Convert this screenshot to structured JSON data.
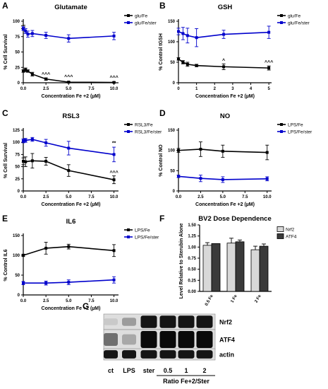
{
  "figure": {
    "blot": {
      "letter": "G",
      "rows": [
        "Nrf2",
        "ATF4",
        "actin"
      ],
      "lanes": [
        "ct",
        "LPS",
        "ster",
        "0.5",
        "1",
        "2"
      ],
      "xlabel": "Ratio Fe+2/Ster",
      "band_intensity": {
        "Nrf2": [
          0.15,
          0.35,
          0.95,
          0.95,
          0.95,
          0.95
        ],
        "ATF4": [
          0.55,
          0.3,
          1.0,
          1.0,
          1.0,
          1.0
        ],
        "actin": [
          0.95,
          0.95,
          0.95,
          0.95,
          0.95,
          0.95
        ]
      }
    }
  },
  "chart_data": [
    {
      "id": "A",
      "letter": "A",
      "type": "line",
      "title": "Glutamate",
      "xlabel": "Concentration Fe +2 (µM)",
      "ylabel": "% Cell Survival",
      "xlim": [
        0,
        10.5
      ],
      "ylim": [
        0,
        100
      ],
      "yaxis_break": true,
      "xticks": [
        0,
        2.5,
        5,
        7.5,
        10
      ],
      "yticks": [
        0,
        25,
        50,
        75,
        100
      ],
      "xtick_labels": [
        "0.0",
        "2.5",
        "5.0",
        "7.5",
        "10.0"
      ],
      "legend_position": "top-right",
      "series": [
        {
          "name": "glu/Fe",
          "color": "#000000",
          "x": [
            0,
            0.25,
            0.5,
            1,
            2.5,
            5,
            10
          ],
          "y": [
            19,
            21,
            19,
            14,
            6,
            1,
            0.5
          ],
          "err": [
            2,
            3,
            2,
            3,
            2,
            1,
            1
          ]
        },
        {
          "name": "glu/Fe/ster",
          "color": "#0000cc",
          "x": [
            0,
            0.25,
            0.5,
            1,
            2.5,
            5,
            10
          ],
          "y": [
            88,
            84,
            79,
            80,
            77,
            72,
            76
          ],
          "err": [
            3,
            4,
            5,
            5,
            5,
            6,
            6
          ]
        }
      ],
      "annotations": [
        {
          "text": "^^^",
          "x": 2.5,
          "y": 11
        },
        {
          "text": "^^^",
          "x": 5,
          "y": 7
        },
        {
          "text": "^^^",
          "x": 10,
          "y": 6
        }
      ]
    },
    {
      "id": "B",
      "letter": "B",
      "type": "line",
      "title": "GSH",
      "xlabel": "Concentration Fe +2 (µM)",
      "ylabel": "% Control tGSH",
      "xlim": [
        0,
        5.15
      ],
      "ylim": [
        0,
        150
      ],
      "xticks": [
        0,
        1,
        2,
        3,
        4,
        5
      ],
      "yticks": [
        0,
        50,
        100,
        150
      ],
      "xtick_labels": [
        "0",
        "1",
        "2",
        "3",
        "4",
        "5"
      ],
      "legend_position": "top-right",
      "series": [
        {
          "name": "glu/Fe",
          "color": "#000000",
          "x": [
            0,
            0.25,
            0.5,
            1,
            2.5,
            5
          ],
          "y": [
            58,
            50,
            45,
            42,
            39,
            36
          ],
          "err": [
            3,
            4,
            5,
            3,
            7,
            5
          ]
        },
        {
          "name": "glu/Fe/ster",
          "color": "#0000cc",
          "x": [
            0,
            0.25,
            0.5,
            1,
            2.5,
            5
          ],
          "y": [
            125,
            120,
            115,
            110,
            118,
            123
          ],
          "err": [
            8,
            15,
            18,
            22,
            10,
            15
          ]
        }
      ],
      "annotations": [
        {
          "text": "^",
          "x": 2.5,
          "y": 50
        },
        {
          "text": "^^^",
          "x": 5,
          "y": 46
        }
      ]
    },
    {
      "id": "C",
      "letter": "C",
      "type": "line",
      "title": "RSL3",
      "xlabel": "Concentration Fe +2 (µM)",
      "ylabel": "% Cell Survival",
      "xlim": [
        0,
        10.5
      ],
      "ylim": [
        0,
        125
      ],
      "xticks": [
        0,
        2.5,
        5,
        7.5,
        10
      ],
      "yticks": [
        0,
        25,
        50,
        75,
        100,
        125
      ],
      "xtick_labels": [
        "0.0",
        "2.5",
        "5.0",
        "7.5",
        "10.0"
      ],
      "legend_position": "top-right",
      "series": [
        {
          "name": "RSL3/Fe",
          "color": "#000000",
          "x": [
            0,
            0.25,
            1,
            2.5,
            5,
            10
          ],
          "y": [
            61,
            60,
            62,
            61,
            42,
            23
          ],
          "err": [
            7,
            10,
            15,
            8,
            12,
            8
          ]
        },
        {
          "name": "RSL3/Fe/ster",
          "color": "#0000cc",
          "x": [
            0,
            0.25,
            1,
            2.5,
            5,
            10
          ],
          "y": [
            103,
            104,
            106,
            99,
            88,
            75
          ],
          "err": [
            4,
            4,
            4,
            7,
            14,
            15
          ]
        }
      ],
      "annotations": [
        {
          "text": "**",
          "x": 10,
          "y": 95
        },
        {
          "text": "^^^",
          "x": 10,
          "y": 34
        }
      ]
    },
    {
      "id": "D",
      "letter": "D",
      "type": "line",
      "title": "NO",
      "xlabel": "Concentration Fe +2 (µM)",
      "ylabel": "% Control NO",
      "xlim": [
        0,
        10.5
      ],
      "ylim": [
        0,
        150
      ],
      "xticks": [
        0,
        2.5,
        5,
        7.5,
        10
      ],
      "yticks": [
        0,
        50,
        100,
        150
      ],
      "xtick_labels": [
        "0.0",
        "2.5",
        "5.0",
        "7.5",
        "10.0"
      ],
      "legend_position": "top-right",
      "series": [
        {
          "name": "LPS/Fe",
          "color": "#000000",
          "x": [
            0,
            2.5,
            5,
            10
          ],
          "y": [
            100,
            103,
            98,
            95
          ],
          "err": [
            5,
            18,
            15,
            18
          ]
        },
        {
          "name": "LPS/Fe/ster",
          "color": "#0000cc",
          "x": [
            0,
            2.5,
            5,
            10
          ],
          "y": [
            36,
            31,
            28,
            30
          ],
          "err": [
            3,
            8,
            7,
            5
          ]
        }
      ],
      "annotations": []
    },
    {
      "id": "E",
      "letter": "E",
      "type": "line",
      "title": "IL6",
      "xlabel": "Concentration Fe +2 (µM)",
      "ylabel": "% Control IL6",
      "xlim": [
        0,
        10.5
      ],
      "ylim": [
        0,
        150
      ],
      "xticks": [
        0,
        2.5,
        5,
        7.5,
        10
      ],
      "yticks": [
        0,
        50,
        100,
        150
      ],
      "xtick_labels": [
        "0.0",
        "2.5",
        "5.0",
        "7.5",
        "10.0"
      ],
      "legend_position": "top-right",
      "series": [
        {
          "name": "LPS/Fe",
          "color": "#000000",
          "x": [
            0,
            2.5,
            5,
            10
          ],
          "y": [
            100,
            118,
            122,
            112
          ],
          "err": [
            3,
            15,
            6,
            15
          ]
        },
        {
          "name": "LPS/Fe/ster",
          "color": "#0000cc",
          "x": [
            0,
            2.5,
            5,
            10
          ],
          "y": [
            30,
            30,
            32,
            38
          ],
          "err": [
            4,
            5,
            6,
            8
          ]
        }
      ],
      "annotations": []
    },
    {
      "id": "F",
      "letter": "F",
      "type": "bar",
      "title": "BV2 Dose Dependence",
      "xlabel": "",
      "ylabel": "Level Relative to Sterubin Alone",
      "ylim": [
        0,
        1.5
      ],
      "yticks": [
        0,
        0.25,
        0.5,
        0.75,
        1.0,
        1.25,
        1.5
      ],
      "ytick_labels": [
        "0.00",
        "0.25",
        "0.50",
        "0.75",
        "1.00",
        "1.25",
        "1.50"
      ],
      "categories": [
        "0.5 Fe",
        "1 Fe",
        "2 Fe"
      ],
      "legend_position": "top-right",
      "series": [
        {
          "name": "Nrf2",
          "color": "#d8d8d8",
          "values": [
            1.04,
            1.09,
            0.94
          ],
          "err": [
            0.06,
            0.11,
            0.08
          ]
        },
        {
          "name": "ATF4",
          "color": "#3a3a3a",
          "values": [
            1.08,
            1.12,
            1.02
          ],
          "err": [
            0.0,
            0.04,
            0.05
          ]
        }
      ]
    }
  ]
}
